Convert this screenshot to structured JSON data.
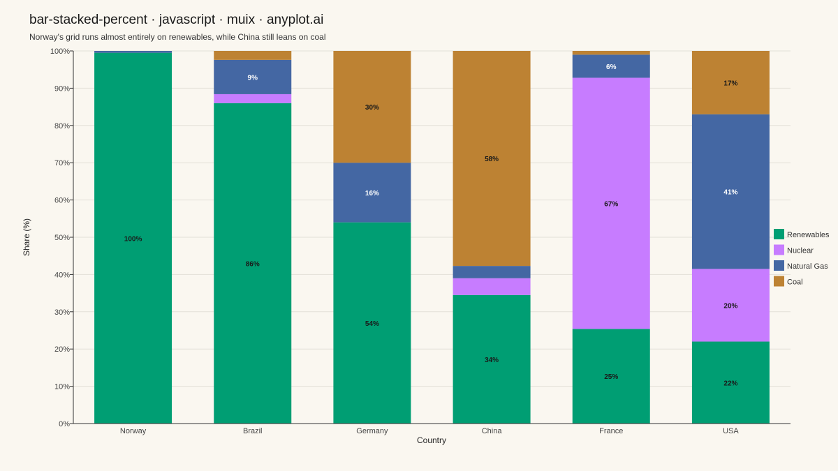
{
  "chart_data": {
    "type": "bar",
    "stacked": "percent",
    "title": "bar-stacked-percent · javascript · muix · anyplot.ai",
    "subtitle": "Norway's grid runs almost entirely on renewables, while China still leans on coal",
    "xlabel": "Country",
    "ylabel": "Share (%)",
    "ylim": [
      0,
      100
    ],
    "yticks": [
      "0%",
      "10%",
      "20%",
      "30%",
      "40%",
      "50%",
      "60%",
      "70%",
      "80%",
      "90%",
      "100%"
    ],
    "grid": true,
    "legend_position": "right",
    "categories": [
      "Norway",
      "Brazil",
      "Germany",
      "China",
      "France",
      "USA"
    ],
    "series": [
      {
        "name": "Renewables",
        "color": "#009E73",
        "values": [
          99.5,
          86,
          54,
          34.5,
          25.4,
          22
        ],
        "labels": [
          "100%",
          "86%",
          "54%",
          "34%",
          "25%",
          "22%"
        ]
      },
      {
        "name": "Nuclear",
        "color": "#C77CFF",
        "values": [
          0,
          2.4,
          0,
          4.5,
          67.4,
          19.5
        ],
        "labels": [
          "",
          "",
          "",
          "",
          "67%",
          "20%"
        ]
      },
      {
        "name": "Natural Gas",
        "color": "#4467A3",
        "values": [
          0.5,
          9.2,
          16,
          3.3,
          6.2,
          41.5
        ],
        "labels": [
          "",
          "9%",
          "16%",
          "",
          "6%",
          "41%"
        ]
      },
      {
        "name": "Coal",
        "color": "#BD8233",
        "values": [
          0,
          2.4,
          30,
          57.7,
          1,
          17
        ],
        "labels": [
          "",
          "",
          "30%",
          "58%",
          "",
          "17%"
        ]
      }
    ]
  }
}
